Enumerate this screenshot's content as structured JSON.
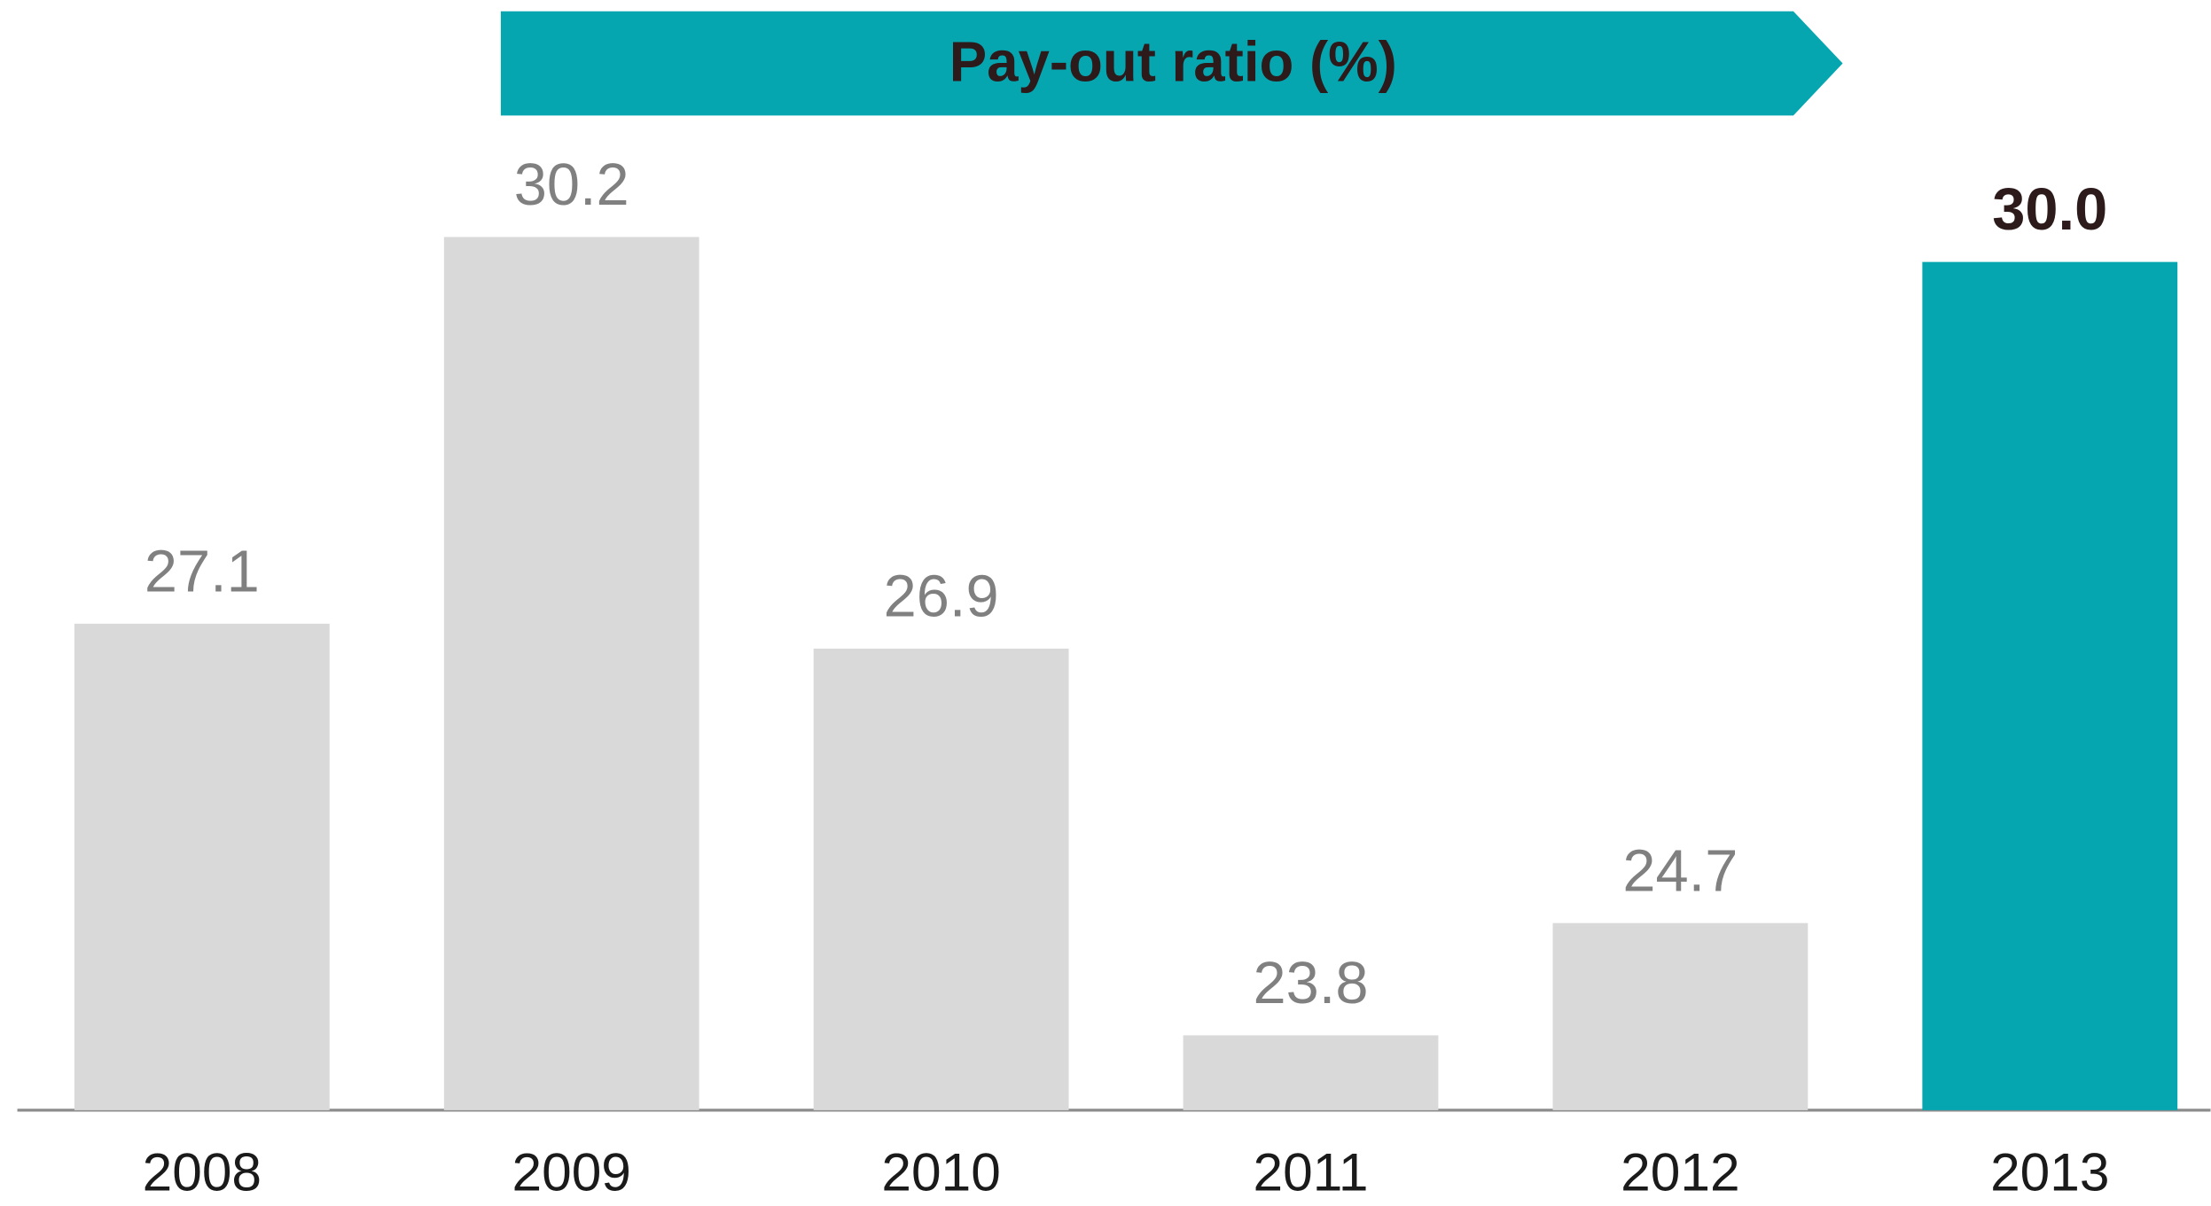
{
  "chart_data": {
    "type": "bar",
    "title": "Pay-out ratio (%)",
    "categories": [
      "2008",
      "2009",
      "2010",
      "2011",
      "2012",
      "2013"
    ],
    "values": [
      27.1,
      30.2,
      26.9,
      23.8,
      24.7,
      30.0
    ],
    "value_labels": [
      "27.1",
      "30.2",
      "26.9",
      "23.8",
      "24.7",
      "30.0"
    ],
    "colors": [
      "#d9d9d9",
      "#d9d9d9",
      "#d9d9d9",
      "#d9d9d9",
      "#d9d9d9",
      "#06a6b1"
    ],
    "highlight_color": "#06a6b1",
    "ylim": [
      23.2,
      32.1
    ]
  }
}
